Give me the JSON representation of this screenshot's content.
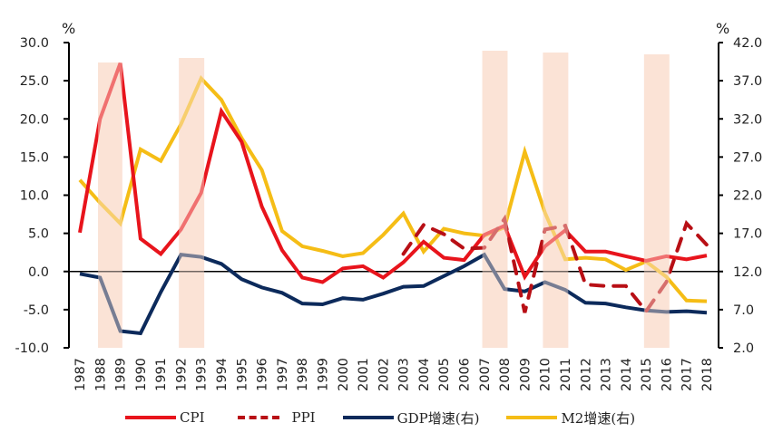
{
  "chart_data": {
    "type": "line",
    "title": "",
    "x": [
      1987,
      1988,
      1989,
      1990,
      1991,
      1992,
      1993,
      1994,
      1995,
      1996,
      1997,
      1998,
      1999,
      2000,
      2001,
      2002,
      2003,
      2004,
      2005,
      2006,
      2007,
      2008,
      2009,
      2010,
      2011,
      2012,
      2013,
      2014,
      2015,
      2016,
      2017,
      2018
    ],
    "x_tick_labels": [
      "1987",
      "1988",
      "1989",
      "1990",
      "1991",
      "1992",
      "1993",
      "1994",
      "1995",
      "1996",
      "1997",
      "1998",
      "1999",
      "2000",
      "2001",
      "2002",
      "2003",
      "2004",
      "2005",
      "2006",
      "2007",
      "2008",
      "2009",
      "2010",
      "2011",
      "2012",
      "2013",
      "2014",
      "2015",
      "2016",
      "2017",
      "2018"
    ],
    "left_axis": {
      "label": "%",
      "ylim": [
        -10,
        30
      ],
      "ticks": [
        -10,
        -5,
        0,
        5,
        10,
        15,
        20,
        25,
        30
      ],
      "tick_labels": [
        "-10.0",
        "-5.0",
        "0.0",
        "5.0",
        "10.0",
        "15.0",
        "20.0",
        "25.0",
        "30.0"
      ]
    },
    "right_axis": {
      "label": "%",
      "ylim": [
        2,
        42
      ],
      "ticks": [
        2,
        7,
        12,
        17,
        22,
        27,
        32,
        37,
        42
      ],
      "tick_labels": [
        "2.0",
        "7.0",
        "12.0",
        "17.0",
        "22.0",
        "27.0",
        "32.0",
        "37.0",
        "42.0"
      ]
    },
    "series": [
      {
        "name": "CPI",
        "axis": "left",
        "style": "solid",
        "color": "#e8141c",
        "values": [
          5.1,
          20.0,
          27.3,
          4.3,
          2.3,
          5.5,
          10.3,
          21.0,
          17.0,
          8.5,
          2.8,
          -0.8,
          -1.4,
          0.4,
          0.7,
          -0.8,
          1.2,
          3.9,
          1.8,
          1.5,
          4.8,
          6.0,
          -0.7,
          3.3,
          5.4,
          2.6,
          2.6,
          2.0,
          1.4,
          2.0,
          1.6,
          2.1
        ]
      },
      {
        "name": "PPI",
        "axis": "left",
        "style": "dashed",
        "color": "#b80f15",
        "values": [
          null,
          null,
          null,
          null,
          null,
          null,
          null,
          null,
          null,
          null,
          null,
          null,
          null,
          null,
          null,
          null,
          2.3,
          6.1,
          4.9,
          3.0,
          3.1,
          6.9,
          -5.4,
          5.5,
          6.0,
          -1.7,
          -1.9,
          -1.9,
          -5.2,
          -1.4,
          6.3,
          3.5
        ]
      },
      {
        "name": "GDP增速(右)",
        "axis": "right",
        "style": "solid",
        "color": "#0c2a5b",
        "values": [
          11.7,
          11.2,
          4.2,
          3.9,
          9.3,
          14.2,
          13.9,
          13.0,
          11.0,
          9.9,
          9.2,
          7.8,
          7.7,
          8.5,
          8.3,
          9.1,
          10.0,
          10.1,
          11.4,
          12.7,
          14.2,
          9.7,
          9.4,
          10.6,
          9.6,
          7.9,
          7.8,
          7.3,
          6.9,
          6.7,
          6.8,
          6.6
        ]
      },
      {
        "name": "M2增速(右)",
        "axis": "right",
        "style": "solid",
        "color": "#f5bd16",
        "values": [
          24.0,
          21.0,
          18.3,
          28.0,
          26.5,
          31.3,
          37.3,
          34.5,
          29.5,
          25.3,
          17.3,
          15.3,
          14.7,
          14.0,
          14.4,
          16.8,
          19.6,
          14.6,
          17.6,
          17.0,
          16.7,
          17.8,
          27.7,
          19.7,
          13.6,
          13.8,
          13.6,
          12.2,
          13.3,
          11.3,
          8.2,
          8.1
        ]
      }
    ],
    "shaded_periods": [
      {
        "start": 1988,
        "end": 1989
      },
      {
        "start": 1992,
        "end": 1993
      },
      {
        "start": 2007,
        "end": 2008
      },
      {
        "start": 2010,
        "end": 2011
      },
      {
        "start": 2015,
        "end": 2016
      }
    ],
    "shade_color": "#fbe3d6",
    "zero_line": true,
    "grid": false,
    "legend": {
      "placement": "bottom",
      "entries": [
        "CPI",
        "PPI",
        "GDP增速(右)",
        "M2增速(右)"
      ]
    }
  }
}
